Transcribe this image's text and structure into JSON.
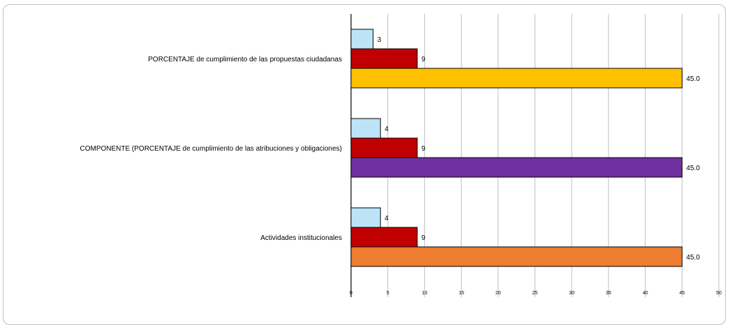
{
  "chart_data": {
    "type": "bar",
    "orientation": "horizontal",
    "title": "",
    "xlabel": "",
    "ylabel": "",
    "xlim": [
      0,
      50
    ],
    "x_ticks": [
      "0",
      "5",
      "10",
      "15",
      "20",
      "25",
      "30",
      "35",
      "40",
      "45",
      "50"
    ],
    "grid": true,
    "legend": "none",
    "categories": [
      {
        "label": "PORCENTAJE de cumplimiento de las propuestas ciudadanas",
        "bars": [
          {
            "value": 3,
            "label": "3",
            "color": "#bde3f7"
          },
          {
            "value": 9,
            "label": "9",
            "color": "#c00000"
          },
          {
            "value": 45,
            "label": "45.0",
            "color": "#ffc000"
          }
        ]
      },
      {
        "label": "COMPONENTE (PORCENTAJE de cumplimiento de las atribuciones y obligaciones)",
        "bars": [
          {
            "value": 4,
            "label": "4",
            "color": "#bde3f7"
          },
          {
            "value": 9,
            "label": "9",
            "color": "#c00000"
          },
          {
            "value": 45,
            "label": "45.0",
            "color": "#7030a0"
          }
        ]
      },
      {
        "label": "Actividades institucionales",
        "bars": [
          {
            "value": 4,
            "label": "4",
            "color": "#bde3f7"
          },
          {
            "value": 9,
            "label": "9",
            "color": "#c00000"
          },
          {
            "value": 45,
            "label": "45.0",
            "color": "#ed7d31"
          }
        ]
      }
    ]
  }
}
